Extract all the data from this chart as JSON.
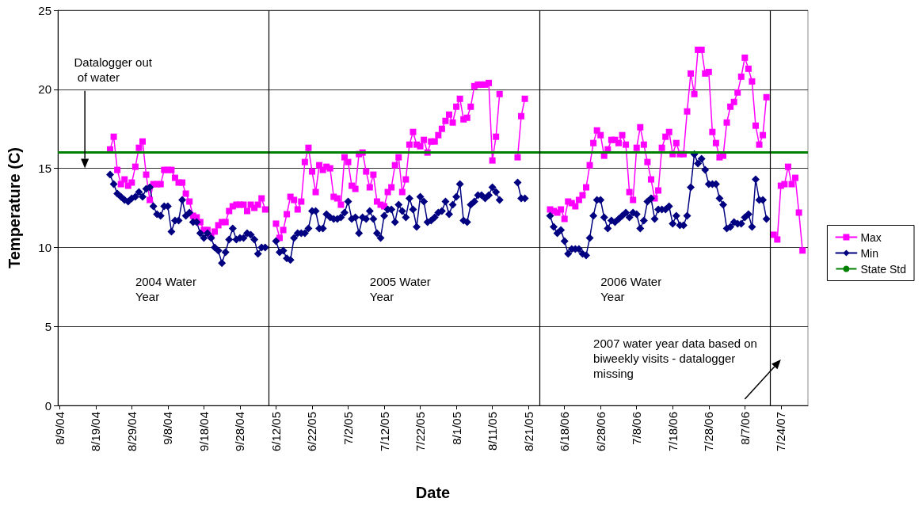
{
  "chart_data": {
    "type": "line",
    "xlabel": "Date",
    "ylabel": "Temperature (C)",
    "categories": [
      "8/9/04",
      null,
      null,
      null,
      null,
      null,
      null,
      null,
      null,
      null,
      "8/19/04",
      null,
      null,
      null,
      null,
      null,
      null,
      null,
      null,
      null,
      "8/29/04",
      null,
      null,
      null,
      null,
      null,
      null,
      null,
      null,
      null,
      "9/8/04",
      null,
      null,
      null,
      null,
      null,
      null,
      null,
      null,
      null,
      "9/18/04",
      null,
      null,
      null,
      null,
      null,
      null,
      null,
      null,
      null,
      "9/28/04",
      null,
      null,
      null,
      null,
      null,
      null,
      null,
      null,
      null,
      "6/12/05",
      null,
      null,
      null,
      null,
      null,
      null,
      null,
      null,
      null,
      "6/22/05",
      null,
      null,
      null,
      null,
      null,
      null,
      null,
      null,
      null,
      "7/2/05",
      null,
      null,
      null,
      null,
      null,
      null,
      null,
      null,
      null,
      "7/12/05",
      null,
      null,
      null,
      null,
      null,
      null,
      null,
      null,
      null,
      "7/22/05",
      null,
      null,
      null,
      null,
      null,
      null,
      null,
      null,
      null,
      "8/1/05",
      null,
      null,
      null,
      null,
      null,
      null,
      null,
      null,
      null,
      "8/11/05",
      null,
      null,
      null,
      null,
      null,
      null,
      null,
      null,
      null,
      "8/21/05",
      null,
      null,
      null,
      null,
      null,
      null,
      null,
      null,
      null,
      "6/18/06",
      null,
      null,
      null,
      null,
      null,
      null,
      null,
      null,
      null,
      "6/28/06",
      null,
      null,
      null,
      null,
      null,
      null,
      null,
      null,
      null,
      "7/8/06",
      null,
      null,
      null,
      null,
      null,
      null,
      null,
      null,
      null,
      "7/18/06",
      null,
      null,
      null,
      null,
      null,
      null,
      null,
      null,
      null,
      "7/28/06",
      null,
      null,
      null,
      null,
      null,
      null,
      null,
      null,
      null,
      "8/7/06",
      null,
      null,
      null,
      null,
      null,
      null,
      null,
      null,
      null,
      "7/24/07",
      null,
      null,
      null,
      null,
      null,
      null,
      null
    ],
    "series": [
      {
        "name": "Max",
        "color": "#ff00ff",
        "marker": "square",
        "values": [
          null,
          null,
          null,
          null,
          null,
          null,
          null,
          null,
          null,
          null,
          null,
          null,
          null,
          null,
          16.2,
          17.0,
          14.9,
          14.0,
          14.3,
          13.9,
          14.1,
          15.1,
          16.3,
          16.7,
          14.6,
          13.0,
          14.0,
          14.0,
          14.0,
          14.9,
          14.9,
          14.9,
          14.4,
          14.1,
          14.1,
          13.4,
          12.9,
          12.0,
          11.9,
          11.6,
          11.1,
          11.1,
          10.7,
          11.0,
          11.4,
          11.6,
          11.6,
          12.3,
          12.6,
          12.7,
          12.7,
          12.7,
          12.3,
          12.7,
          12.5,
          12.7,
          13.1,
          12.4,
          null,
          null,
          11.5,
          10.6,
          11.1,
          12.1,
          13.2,
          13.0,
          12.4,
          12.9,
          15.4,
          16.3,
          14.8,
          13.5,
          15.2,
          14.9,
          15.1,
          15.0,
          13.2,
          13.1,
          12.7,
          15.7,
          15.4,
          13.9,
          13.7,
          15.9,
          16.0,
          14.8,
          13.8,
          14.6,
          12.9,
          12.7,
          12.6,
          13.5,
          13.8,
          15.2,
          15.7,
          13.5,
          14.3,
          16.5,
          17.3,
          16.5,
          16.4,
          16.8,
          16.0,
          16.7,
          16.7,
          17.1,
          17.5,
          18.0,
          18.4,
          17.9,
          18.9,
          19.4,
          18.1,
          18.2,
          18.9,
          20.2,
          20.3,
          20.3,
          20.3,
          20.4,
          15.5,
          17.0,
          19.7,
          null,
          null,
          null,
          null,
          15.7,
          18.3,
          19.4,
          null,
          null,
          null,
          null,
          null,
          null,
          12.4,
          12.3,
          12.2,
          12.4,
          11.8,
          12.9,
          12.8,
          12.6,
          13.0,
          13.3,
          13.8,
          15.2,
          16.6,
          17.4,
          17.1,
          15.8,
          16.2,
          16.8,
          16.8,
          16.6,
          17.1,
          16.5,
          13.5,
          13.0,
          16.3,
          17.6,
          16.5,
          15.4,
          14.3,
          13.1,
          13.6,
          16.3,
          17.0,
          17.3,
          15.9,
          16.6,
          15.9,
          15.9,
          18.6,
          21.0,
          19.7,
          22.5,
          22.5,
          21.0,
          21.1,
          17.3,
          16.6,
          15.7,
          15.8,
          17.9,
          18.9,
          19.2,
          19.8,
          20.8,
          22.0,
          21.3,
          20.5,
          17.7,
          16.5,
          17.1,
          19.5,
          null,
          10.8,
          10.5,
          13.9,
          14.0,
          15.1,
          14.0,
          14.4,
          12.2,
          9.8,
          null
        ]
      },
      {
        "name": "Min",
        "color": "#000080",
        "marker": "diamond",
        "values": [
          null,
          null,
          null,
          null,
          null,
          null,
          null,
          null,
          null,
          null,
          null,
          null,
          null,
          null,
          14.6,
          14.0,
          13.4,
          13.2,
          13.0,
          12.9,
          13.1,
          13.2,
          13.5,
          13.2,
          13.7,
          13.8,
          12.6,
          12.1,
          12.0,
          12.6,
          12.6,
          11.0,
          11.7,
          11.7,
          13.0,
          12.0,
          12.2,
          11.6,
          11.6,
          10.9,
          10.6,
          10.9,
          10.6,
          10.0,
          9.8,
          9.0,
          9.7,
          10.5,
          11.2,
          10.5,
          10.6,
          10.6,
          10.9,
          10.8,
          10.5,
          9.6,
          10.0,
          10.0,
          null,
          null,
          10.4,
          9.7,
          9.8,
          9.3,
          9.2,
          10.6,
          10.9,
          10.9,
          10.9,
          11.2,
          12.3,
          12.3,
          11.2,
          11.2,
          12.1,
          11.9,
          11.8,
          11.8,
          11.9,
          12.2,
          12.9,
          11.8,
          11.9,
          10.9,
          11.9,
          11.8,
          12.3,
          11.8,
          10.9,
          10.6,
          12.0,
          12.4,
          12.4,
          11.6,
          12.7,
          12.3,
          11.9,
          13.1,
          12.4,
          11.3,
          13.2,
          12.9,
          11.6,
          11.7,
          11.9,
          12.2,
          12.3,
          12.9,
          12.1,
          12.7,
          13.2,
          14.0,
          11.7,
          11.6,
          12.7,
          12.9,
          13.3,
          13.3,
          13.1,
          13.3,
          13.8,
          13.5,
          13.0,
          null,
          null,
          null,
          null,
          14.1,
          13.1,
          13.1,
          null,
          null,
          null,
          null,
          null,
          null,
          12.0,
          11.3,
          10.9,
          11.1,
          10.4,
          9.6,
          9.9,
          9.9,
          9.9,
          9.6,
          9.5,
          10.6,
          12.0,
          13.0,
          13.0,
          11.9,
          11.2,
          11.7,
          11.6,
          11.8,
          12.0,
          12.2,
          11.9,
          12.2,
          12.1,
          11.2,
          11.7,
          12.9,
          13.1,
          11.8,
          12.4,
          12.4,
          12.4,
          12.6,
          11.5,
          12.0,
          11.4,
          11.4,
          12.0,
          13.8,
          15.9,
          15.3,
          15.6,
          14.9,
          14.0,
          14.0,
          14.0,
          13.1,
          12.7,
          11.2,
          11.3,
          11.6,
          11.5,
          11.5,
          11.9,
          12.1,
          11.3,
          14.3,
          13.0,
          13.0,
          11.8,
          null,
          null,
          null,
          null,
          null,
          null,
          null,
          null,
          null,
          null,
          null
        ]
      }
    ],
    "ylim": [
      0,
      25
    ],
    "yticks": [
      0,
      5,
      10,
      15,
      20,
      25
    ],
    "grid": "y",
    "legend": "right",
    "line_style": "solid",
    "ref_lines": [
      {
        "axis": "y",
        "value": 16,
        "label": "State Std",
        "color": "#008000"
      }
    ],
    "annotations": [
      "Datalogger out of water",
      "2004 Water Year",
      "2005 Water Year",
      "2006 Water Year",
      "2007 water year data based on biweekly visits - datalogger missing"
    ]
  }
}
